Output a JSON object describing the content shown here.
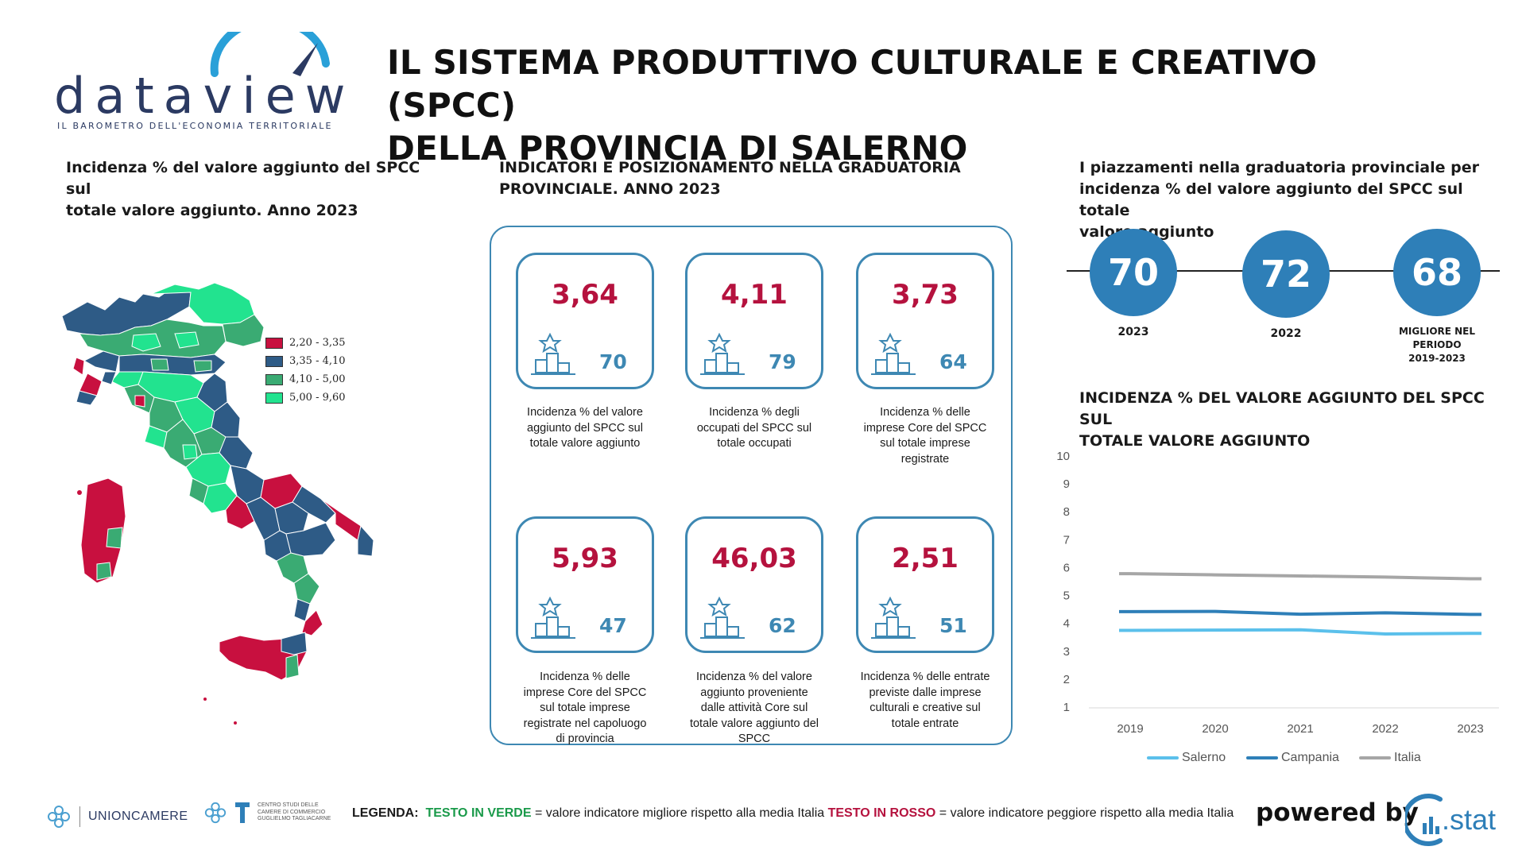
{
  "header": {
    "logo_word": "dataview",
    "logo_tagline": "IL BAROMETRO DELL'ECONOMIA TERRITORIALE",
    "title_line1": "IL SISTEMA PRODUTTIVO CULTURALE E CREATIVO (SPCC)",
    "title_line2": "DELLA PROVINCIA DI SALERNO"
  },
  "map_section": {
    "title_line1": "Incidenza % del valore aggiunto del SPCC sul",
    "title_line2": "totale valore aggiunto. Anno 2023",
    "legend": [
      {
        "label": "2,20 - 3,35",
        "color": "#c8103f"
      },
      {
        "label": "3,35 - 4,10",
        "color": "#2e5b86"
      },
      {
        "label": "4,10 - 5,00",
        "color": "#3aab73"
      },
      {
        "label": "5,00 - 9,60",
        "color": "#22e38f"
      }
    ]
  },
  "indicators": {
    "title_line1": "INDICATORI E POSIZIONAMENTO NELLA GRADUATORIA",
    "title_line2": "PROVINCIALE. ANNO 2023",
    "cards": [
      {
        "value": "3,64",
        "rank": "70",
        "desc": [
          "Incidenza % del valore",
          "aggiunto del SPCC sul",
          "totale valore aggiunto"
        ]
      },
      {
        "value": "4,11",
        "rank": "79",
        "desc": [
          "Incidenza % degli",
          "occupati del SPCC sul",
          "totale occupati"
        ]
      },
      {
        "value": "3,73",
        "rank": "64",
        "desc": [
          "Incidenza % delle",
          "imprese Core del SPCC",
          "sul totale imprese",
          "registrate"
        ]
      },
      {
        "value": "5,93",
        "rank": "47",
        "desc": [
          "Incidenza % delle",
          "imprese Core del SPCC",
          "sul totale imprese",
          "registrate nel capoluogo",
          "di provincia"
        ]
      },
      {
        "value": "46,03",
        "rank": "62",
        "desc": [
          "Incidenza % del valore",
          "aggiunto proveniente",
          "dalle attività Core sul",
          "totale valore aggiunto del",
          "SPCC"
        ]
      },
      {
        "value": "2,51",
        "rank": "51",
        "desc": [
          "Incidenza % delle entrate",
          "previste dalle imprese",
          "culturali e creative sul",
          "totale entrate"
        ]
      }
    ]
  },
  "placements": {
    "title_line1": "I piazzamenti nella graduatoria provinciale per",
    "title_line2": "incidenza % del valore aggiunto del SPCC sul totale",
    "title_line3": "valore aggiunto",
    "items": [
      {
        "value": "70",
        "label": "2023"
      },
      {
        "value": "72",
        "label": "2022"
      },
      {
        "value": "68",
        "label_lines": [
          "MIGLIORE NEL",
          "PERIODO",
          "2019-2023"
        ]
      }
    ]
  },
  "chart_data": {
    "type": "line",
    "title": "INCIDENZA % DEL VALORE AGGIUNTO DEL SPCC SUL TOTALE VALORE AGGIUNTO",
    "title_line1": "INCIDENZA % DEL VALORE AGGIUNTO DEL SPCC SUL",
    "title_line2": "TOTALE VALORE AGGIUNTO",
    "x": [
      "2019",
      "2020",
      "2021",
      "2022",
      "2023"
    ],
    "ylim": [
      1,
      10
    ],
    "yticks": [
      "1",
      "2",
      "3",
      "4",
      "5",
      "6",
      "7",
      "8",
      "9",
      "10"
    ],
    "series": [
      {
        "name": "Salerno",
        "values": [
          3.75,
          3.76,
          3.77,
          3.62,
          3.64
        ],
        "color": "#5bc0eb"
      },
      {
        "name": "Campania",
        "values": [
          4.42,
          4.43,
          4.33,
          4.38,
          4.32
        ],
        "color": "#2e7fb8"
      },
      {
        "name": "Italia",
        "values": [
          5.78,
          5.74,
          5.7,
          5.66,
          5.6
        ],
        "color": "#a6a6a6"
      }
    ],
    "legend_position": "bottom",
    "grid": false
  },
  "footer": {
    "unioncamere": "UNIONCAMERE",
    "tagliacarne_lines": [
      "CENTRO STUDI DELLE",
      "CAMERE DI COMMERCIO",
      "GUGLIELMO TAGLIACARNE"
    ],
    "legenda_label": "LEGENDA:",
    "legenda_green": "TESTO IN VERDE",
    "legenda_green_desc": "= valore indicatore migliore rispetto alla media Italia",
    "legenda_red": "TESTO IN ROSSO",
    "legenda_red_desc": "= valore indicatore peggiore rispetto alla media Italia",
    "powered_by": "powered by",
    "cstat": ".stat"
  }
}
